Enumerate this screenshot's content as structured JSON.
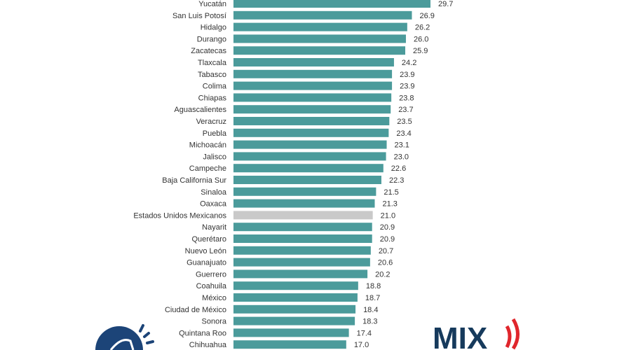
{
  "chart_data": {
    "type": "bar",
    "orientation": "horizontal",
    "categories": [
      "Yucatán",
      "San Luis Potosí",
      "Hidalgo",
      "Durango",
      "Zacatecas",
      "Tlaxcala",
      "Tabasco",
      "Colima",
      "Chiapas",
      "Aguascalientes",
      "Veracruz",
      "Puebla",
      "Michoacán",
      "Jalisco",
      "Campeche",
      "Baja California Sur",
      "Sinaloa",
      "Oaxaca",
      "Estados Unidos Mexicanos",
      "Nayarit",
      "Querétaro",
      "Nuevo León",
      "Guanajuato",
      "Guerrero",
      "Coahuila",
      "México",
      "Ciudad de México",
      "Sonora",
      "Quintana Roo",
      "Chihuahua"
    ],
    "values": [
      29.7,
      26.9,
      26.2,
      26.0,
      25.9,
      24.2,
      23.9,
      23.9,
      23.8,
      23.7,
      23.5,
      23.4,
      23.1,
      23.0,
      22.6,
      22.3,
      21.5,
      21.3,
      21.0,
      20.9,
      20.9,
      20.7,
      20.6,
      20.2,
      18.8,
      18.7,
      18.4,
      18.3,
      17.4,
      17.0
    ],
    "highlight": "Estados Unidos Mexicanos",
    "xlim": [
      0,
      30
    ],
    "grid": false,
    "colors": {
      "bar": "#4b9b9b",
      "highlight": "#c9c9c9"
    }
  },
  "logos": {
    "left": {
      "icon": "megaphone-icon",
      "color": "#1c4478"
    },
    "right": {
      "text": "MIX",
      "colors": {
        "text": "#163a5c",
        "waves": "#e0262c"
      }
    }
  }
}
